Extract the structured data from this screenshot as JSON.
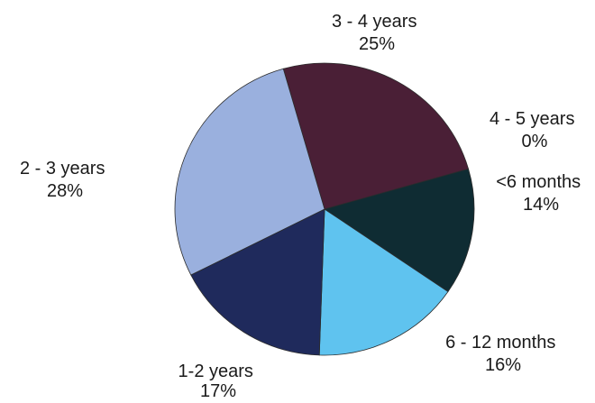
{
  "chart_data": {
    "type": "pie",
    "title": "",
    "slices": [
      {
        "label": "3 - 4 years",
        "percent": "25%",
        "value": 25,
        "color": "#4a1f36"
      },
      {
        "label": "4 - 5 years",
        "percent": "0%",
        "value": 0,
        "color": "#3a2a3e"
      },
      {
        "label": "<6 months",
        "percent": "14%",
        "value": 14,
        "color": "#0f2c33"
      },
      {
        "label": "6 - 12 months",
        "percent": "16%",
        "value": 16,
        "color": "#5fc3ef"
      },
      {
        "label": "1-2 years",
        "percent": "17%",
        "value": 17,
        "color": "#1f2a5c"
      },
      {
        "label": "2 - 3 years",
        "percent": "28%",
        "value": 28,
        "color": "#9ab0de"
      }
    ]
  }
}
